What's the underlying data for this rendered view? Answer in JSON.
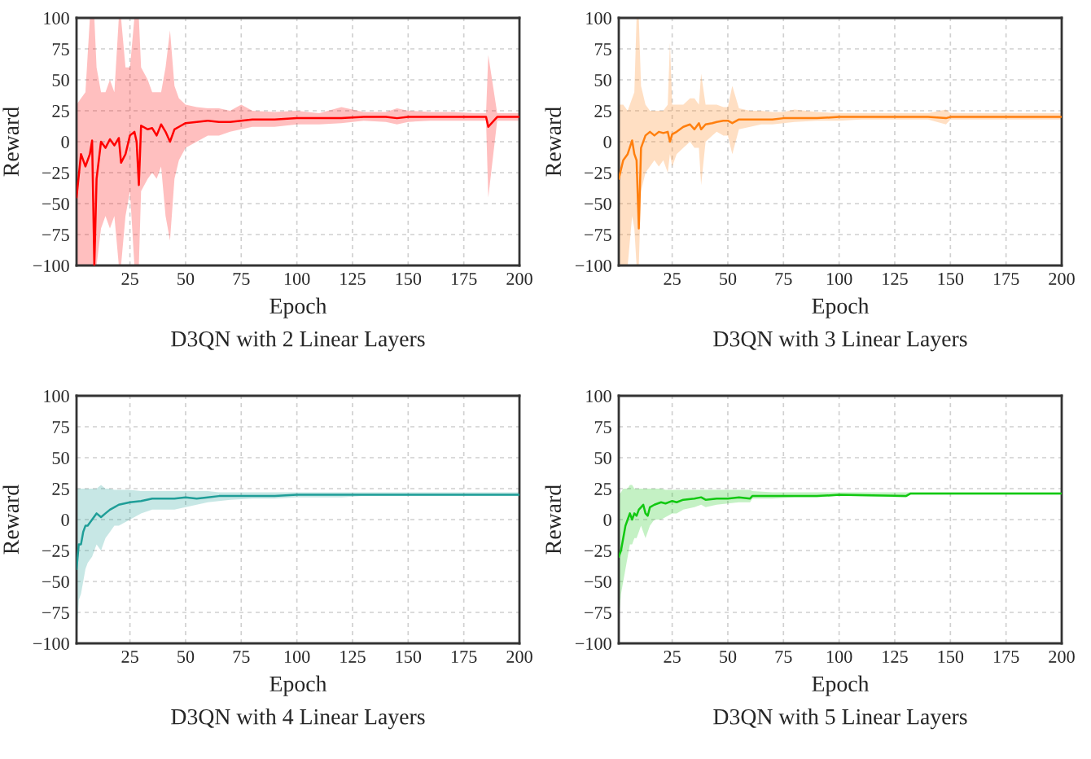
{
  "chart_data": [
    {
      "type": "line",
      "title": "D3QN with 2 Linear Layers",
      "xlabel": "Epoch",
      "ylabel": "Reward",
      "xlim": [
        1,
        200
      ],
      "ylim": [
        -100,
        100
      ],
      "xticks": [
        25,
        50,
        75,
        100,
        125,
        150,
        175,
        200
      ],
      "yticks": [
        {
          "value": -100,
          "label": "−100"
        },
        {
          "value": -75,
          "label": "−75"
        },
        {
          "value": -50,
          "label": "−50"
        },
        {
          "value": -25,
          "label": "−25"
        },
        0,
        25,
        50,
        75,
        100
      ],
      "grid": true,
      "line_style": "solid",
      "series": [
        {
          "color": "#ff0000",
          "x": [
            1,
            3,
            5,
            7,
            8,
            9,
            10,
            12,
            14,
            16,
            18,
            20,
            21,
            23,
            25,
            27,
            28,
            29,
            30,
            33,
            35,
            37,
            39,
            41,
            43,
            45,
            47,
            50,
            55,
            60,
            65,
            70,
            75,
            80,
            90,
            100,
            110,
            120,
            130,
            140,
            145,
            150,
            160,
            170,
            180,
            185,
            186,
            190,
            200
          ],
          "values": [
            -45,
            -10,
            -20,
            -10,
            1,
            -100,
            -30,
            0,
            -5,
            2,
            -3,
            3,
            -17,
            -10,
            5,
            8,
            0,
            -35,
            13,
            10,
            11,
            5,
            14,
            8,
            0,
            10,
            12,
            15,
            16,
            17,
            16,
            16,
            17,
            18,
            18,
            19,
            19,
            19,
            20,
            20,
            19,
            20,
            20,
            20,
            20,
            20,
            12,
            20,
            20
          ],
          "lower": [
            -100,
            -100,
            -100,
            -100,
            -100,
            -100,
            -100,
            -70,
            -60,
            -70,
            -60,
            -100,
            -100,
            -60,
            -40,
            -100,
            -100,
            -100,
            -40,
            -30,
            -25,
            -30,
            -20,
            -60,
            -80,
            -30,
            -15,
            -5,
            0,
            5,
            5,
            8,
            10,
            12,
            12,
            14,
            14,
            15,
            17,
            16,
            14,
            16,
            17,
            17,
            17,
            17,
            -45,
            17,
            17
          ],
          "upper": [
            30,
            35,
            40,
            100,
            100,
            100,
            60,
            40,
            40,
            50,
            40,
            100,
            100,
            60,
            60,
            100,
            100,
            100,
            60,
            50,
            40,
            40,
            40,
            60,
            90,
            45,
            35,
            30,
            28,
            27,
            27,
            25,
            30,
            25,
            24,
            25,
            23,
            28,
            24,
            24,
            27,
            25,
            24,
            24,
            23,
            23,
            70,
            23,
            23
          ]
        }
      ]
    },
    {
      "type": "line",
      "title": "D3QN with 3 Linear Layers",
      "xlabel": "Epoch",
      "ylabel": "Reward",
      "xlim": [
        1,
        200
      ],
      "ylim": [
        -100,
        100
      ],
      "xticks": [
        25,
        50,
        75,
        100,
        125,
        150,
        175,
        200
      ],
      "yticks": [
        {
          "value": -100,
          "label": "−100"
        },
        {
          "value": -75,
          "label": "−75"
        },
        {
          "value": -50,
          "label": "−50"
        },
        {
          "value": -25,
          "label": "−25"
        },
        0,
        25,
        50,
        75,
        100
      ],
      "grid": true,
      "line_style": "solid",
      "series": [
        {
          "color": "#ff7f0e",
          "x": [
            1,
            3,
            5,
            7,
            8,
            9,
            10,
            11,
            13,
            15,
            17,
            19,
            21,
            23,
            24,
            25,
            27,
            30,
            33,
            35,
            37,
            38,
            40,
            43,
            45,
            48,
            50,
            52,
            55,
            60,
            65,
            70,
            75,
            80,
            90,
            100,
            110,
            125,
            140,
            148,
            150,
            165,
            180,
            200
          ],
          "values": [
            -30,
            -15,
            -10,
            1,
            -10,
            -15,
            -70,
            -5,
            5,
            8,
            5,
            8,
            7,
            8,
            0,
            6,
            8,
            12,
            14,
            10,
            15,
            10,
            14,
            15,
            16,
            17,
            17,
            15,
            18,
            18,
            18,
            18,
            19,
            19,
            19,
            20,
            20,
            20,
            20,
            19,
            20,
            20,
            20,
            20
          ],
          "lower": [
            -100,
            -100,
            -100,
            -60,
            -70,
            -100,
            -100,
            -40,
            -25,
            -20,
            -15,
            -20,
            -15,
            -25,
            -10,
            -20,
            -10,
            -5,
            0,
            -5,
            -5,
            -35,
            0,
            5,
            8,
            5,
            5,
            -10,
            10,
            12,
            14,
            14,
            15,
            16,
            17,
            17,
            18,
            18,
            18,
            14,
            18,
            18,
            18,
            18
          ],
          "upper": [
            30,
            30,
            25,
            35,
            40,
            100,
            100,
            45,
            30,
            25,
            25,
            25,
            25,
            30,
            80,
            30,
            30,
            30,
            35,
            35,
            30,
            55,
            30,
            30,
            30,
            28,
            28,
            45,
            27,
            25,
            25,
            24,
            24,
            26,
            24,
            23,
            23,
            23,
            23,
            26,
            23,
            23,
            23,
            23
          ]
        }
      ]
    },
    {
      "type": "line",
      "title": "D3QN with 4 Linear Layers",
      "xlabel": "Epoch",
      "ylabel": "Reward",
      "xlim": [
        1,
        200
      ],
      "ylim": [
        -100,
        100
      ],
      "xticks": [
        25,
        50,
        75,
        100,
        125,
        150,
        175,
        200
      ],
      "yticks": [
        {
          "value": -100,
          "label": "−100"
        },
        {
          "value": -75,
          "label": "−75"
        },
        {
          "value": -50,
          "label": "−50"
        },
        {
          "value": -25,
          "label": "−25"
        },
        0,
        25,
        50,
        75,
        100
      ],
      "grid": true,
      "line_style": "solid",
      "series": [
        {
          "color": "#1f9e98",
          "x": [
            1,
            2,
            3,
            4,
            5,
            6,
            8,
            10,
            12,
            14,
            16,
            18,
            20,
            25,
            30,
            35,
            40,
            45,
            50,
            55,
            60,
            65,
            70,
            80,
            90,
            100,
            110,
            120,
            130,
            150,
            170,
            200
          ],
          "values": [
            -40,
            -20,
            -20,
            -10,
            -5,
            -5,
            0,
            5,
            2,
            5,
            8,
            10,
            12,
            14,
            15,
            17,
            17,
            17,
            18,
            17,
            18,
            19,
            19,
            19,
            19,
            20,
            20,
            20,
            20,
            20,
            20,
            20
          ],
          "lower": [
            -100,
            -65,
            -60,
            -50,
            -40,
            -35,
            -30,
            -20,
            -25,
            -15,
            -10,
            -5,
            -5,
            0,
            5,
            8,
            8,
            8,
            10,
            12,
            14,
            15,
            16,
            17,
            17,
            18,
            18,
            18,
            19,
            19,
            19,
            19
          ],
          "upper": [
            25,
            25,
            25,
            25,
            25,
            25,
            25,
            25,
            28,
            25,
            25,
            24,
            24,
            24,
            23,
            23,
            23,
            23,
            23,
            23,
            23,
            22,
            22,
            22,
            22,
            22,
            22,
            22,
            22,
            22,
            22,
            22
          ]
        }
      ]
    },
    {
      "type": "line",
      "title": "D3QN with 5 Linear Layers",
      "xlabel": "Epoch",
      "ylabel": "Reward",
      "xlim": [
        1,
        200
      ],
      "ylim": [
        -100,
        100
      ],
      "xticks": [
        25,
        50,
        75,
        100,
        125,
        150,
        175,
        200
      ],
      "yticks": [
        {
          "value": -100,
          "label": "−100"
        },
        {
          "value": -75,
          "label": "−75"
        },
        {
          "value": -50,
          "label": "−50"
        },
        {
          "value": -25,
          "label": "−25"
        },
        0,
        25,
        50,
        75,
        100
      ],
      "grid": true,
      "line_style": "solid",
      "series": [
        {
          "color": "#12c812",
          "x": [
            1,
            2,
            3,
            4,
            5,
            6,
            7,
            8,
            9,
            10,
            11,
            12,
            13,
            14,
            15,
            17,
            20,
            22,
            25,
            27,
            30,
            35,
            38,
            40,
            45,
            50,
            55,
            60,
            61,
            70,
            80,
            90,
            100,
            130,
            132,
            150,
            200
          ],
          "values": [
            -30,
            -25,
            -15,
            -5,
            0,
            5,
            0,
            5,
            3,
            8,
            10,
            12,
            5,
            3,
            10,
            12,
            14,
            13,
            15,
            14,
            16,
            17,
            18,
            16,
            17,
            17,
            18,
            17,
            19,
            19,
            19,
            19,
            20,
            19,
            21,
            21,
            21
          ],
          "lower": [
            -80,
            -60,
            -50,
            -40,
            -30,
            -20,
            -20,
            -15,
            -15,
            -10,
            -5,
            -10,
            -15,
            -10,
            -5,
            0,
            0,
            2,
            5,
            5,
            8,
            10,
            12,
            10,
            12,
            13,
            14,
            14,
            17,
            17,
            18,
            18,
            19,
            18,
            20,
            20,
            20
          ],
          "upper": [
            20,
            22,
            25,
            25,
            25,
            28,
            28,
            25,
            25,
            25,
            25,
            25,
            25,
            25,
            25,
            25,
            25,
            24,
            24,
            24,
            24,
            24,
            24,
            24,
            24,
            24,
            24,
            24,
            23,
            22,
            22,
            22,
            22,
            22,
            22,
            22,
            22
          ]
        }
      ]
    }
  ]
}
